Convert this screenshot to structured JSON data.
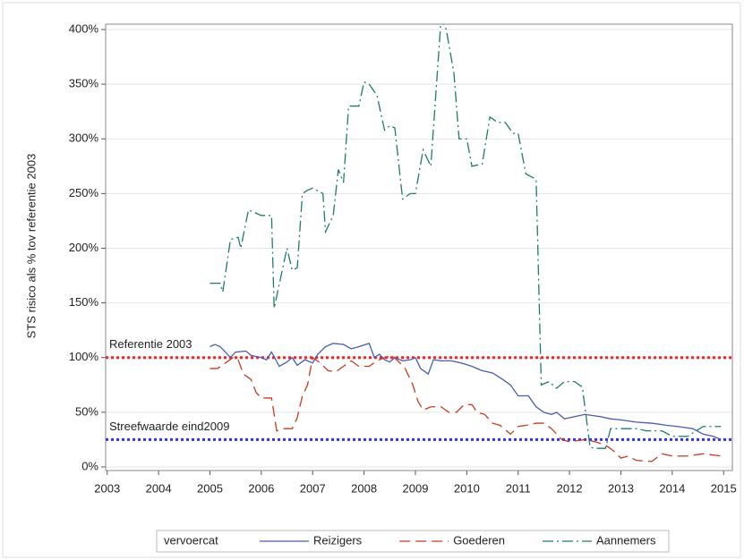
{
  "chart_data": {
    "type": "line",
    "y_label": "STS risico als % tov referentie 2003",
    "xlim": [
      2002.97,
      2015.17
    ],
    "ylim": [
      -3.3,
      404.9
    ],
    "xticks": [
      2003,
      2004,
      2005,
      2006,
      2007,
      2008,
      2009,
      2010,
      2011,
      2012,
      2013,
      2014,
      2015
    ],
    "yticks": [
      {
        "value": 0,
        "label": "0%"
      },
      {
        "value": 50,
        "label": "50%"
      },
      {
        "value": 100,
        "label": "100%"
      },
      {
        "value": 150,
        "label": "150%"
      },
      {
        "value": 200,
        "label": "200%"
      },
      {
        "value": 250,
        "label": "250%"
      },
      {
        "value": 300,
        "label": "300%"
      },
      {
        "value": 350,
        "label": "350%"
      },
      {
        "value": 400,
        "label": "400%"
      }
    ],
    "grid": true,
    "legend_title": "vervoercat",
    "legend_position": "bottom",
    "reference_lines": [
      {
        "value": 100,
        "label": "Referentie 2003",
        "color": "#ff2020"
      },
      {
        "value": 25,
        "label": "Streefwaarde eind2009",
        "color": "#3030ff"
      }
    ],
    "series": [
      {
        "name": "Reizigers",
        "color": "#4a5cb0",
        "dash": "solid",
        "x": [
          2005,
          2005.1,
          2005.2,
          2005.3,
          2005.4,
          2005.5,
          2005.7,
          2005.8,
          2006,
          2006.1,
          2006.2,
          2006.35,
          2006.5,
          2006.6,
          2006.7,
          2006.85,
          2007,
          2007.1,
          2007.25,
          2007.4,
          2007.6,
          2007.75,
          2007.9,
          2008.1,
          2008.2,
          2008.3,
          2008.4,
          2008.5,
          2008.6,
          2008.75,
          2008.9,
          2009,
          2009.1,
          2009.25,
          2009.35,
          2009.5,
          2009.7,
          2009.9,
          2010.1,
          2010.3,
          2010.5,
          2010.7,
          2010.85,
          2011,
          2011.2,
          2011.35,
          2011.5,
          2011.65,
          2011.75,
          2011.9,
          2012.1,
          2012.3,
          2012.6,
          2012.8,
          2013,
          2013.3,
          2013.6,
          2013.9,
          2014.1,
          2014.4,
          2014.6,
          2014.8,
          2014.95
        ],
        "values": [
          110,
          112,
          110,
          105,
          100,
          105,
          106,
          102,
          100,
          98,
          105,
          92,
          96,
          100,
          93,
          98,
          95,
          103,
          110,
          113,
          112,
          108,
          110,
          113,
          100,
          103,
          98,
          96,
          100,
          97,
          98,
          100,
          90,
          85,
          98,
          97,
          97,
          95,
          92,
          88,
          86,
          80,
          75,
          65,
          65,
          55,
          50,
          48,
          50,
          44,
          46,
          48,
          46,
          44,
          43,
          41,
          40,
          38,
          37,
          35,
          30,
          28,
          25
        ]
      },
      {
        "name": "Goederen",
        "color": "#c83a1e",
        "dash": "dashed",
        "x": [
          2005,
          2005.15,
          2005.3,
          2005.45,
          2005.55,
          2005.65,
          2005.8,
          2005.9,
          2006,
          2006.2,
          2006.3,
          2006.45,
          2006.6,
          2006.7,
          2006.8,
          2006.9,
          2007,
          2007.15,
          2007.3,
          2007.45,
          2007.6,
          2007.75,
          2007.9,
          2008.1,
          2008.25,
          2008.4,
          2008.55,
          2008.7,
          2008.8,
          2008.95,
          2009.05,
          2009.15,
          2009.3,
          2009.5,
          2009.65,
          2009.8,
          2009.95,
          2010.1,
          2010.2,
          2010.35,
          2010.5,
          2010.65,
          2010.85,
          2011,
          2011.15,
          2011.35,
          2011.5,
          2011.65,
          2011.85,
          2012,
          2012.3,
          2012.5,
          2012.7,
          2012.85,
          2013,
          2013.15,
          2013.3,
          2013.6,
          2013.8,
          2014,
          2014.3,
          2014.6,
          2014.95
        ],
        "values": [
          90,
          90,
          95,
          100,
          98,
          85,
          80,
          68,
          63,
          63,
          33,
          35,
          35,
          45,
          65,
          75,
          100,
          95,
          88,
          87,
          92,
          97,
          92,
          92,
          97,
          100,
          102,
          95,
          90,
          75,
          60,
          52,
          55,
          55,
          50,
          50,
          57,
          57,
          50,
          48,
          40,
          38,
          30,
          37,
          38,
          40,
          40,
          35,
          25,
          23,
          25,
          23,
          20,
          15,
          8,
          10,
          6,
          5,
          12,
          10,
          10,
          12,
          10
        ]
      },
      {
        "name": "Aannemers",
        "color": "#1f7a6e",
        "dash": "dashdot",
        "x": [
          2005,
          2005.2,
          2005.25,
          2005.4,
          2005.55,
          2005.6,
          2005.75,
          2005.9,
          2006,
          2006.2,
          2006.25,
          2006.5,
          2006.6,
          2006.7,
          2006.8,
          2006.9,
          2007,
          2007.2,
          2007.25,
          2007.4,
          2007.5,
          2007.6,
          2007.7,
          2007.9,
          2008,
          2008.1,
          2008.25,
          2008.4,
          2008.5,
          2008.6,
          2008.75,
          2008.9,
          2009,
          2009.15,
          2009.3,
          2009.5,
          2009.6,
          2009.75,
          2009.85,
          2010,
          2010.1,
          2010.3,
          2010.45,
          2010.6,
          2010.75,
          2010.9,
          2011,
          2011.15,
          2011.35,
          2011.45,
          2011.6,
          2011.75,
          2011.9,
          2012.1,
          2012.25,
          2012.4,
          2012.5,
          2012.7,
          2012.8,
          2013,
          2013.3,
          2013.5,
          2013.8,
          2014,
          2014.3,
          2014.6,
          2014.95
        ],
        "values": [
          168,
          168,
          160,
          208,
          210,
          200,
          235,
          232,
          230,
          230,
          145,
          200,
          180,
          182,
          250,
          253,
          255,
          250,
          215,
          230,
          272,
          260,
          330,
          330,
          352,
          350,
          340,
          308,
          312,
          310,
          245,
          250,
          250,
          290,
          275,
          410,
          400,
          360,
          300,
          300,
          275,
          277,
          320,
          315,
          315,
          305,
          305,
          268,
          263,
          75,
          78,
          72,
          78,
          78,
          73,
          18,
          17,
          17,
          35,
          35,
          35,
          33,
          33,
          28,
          28,
          37,
          37
        ]
      }
    ]
  }
}
